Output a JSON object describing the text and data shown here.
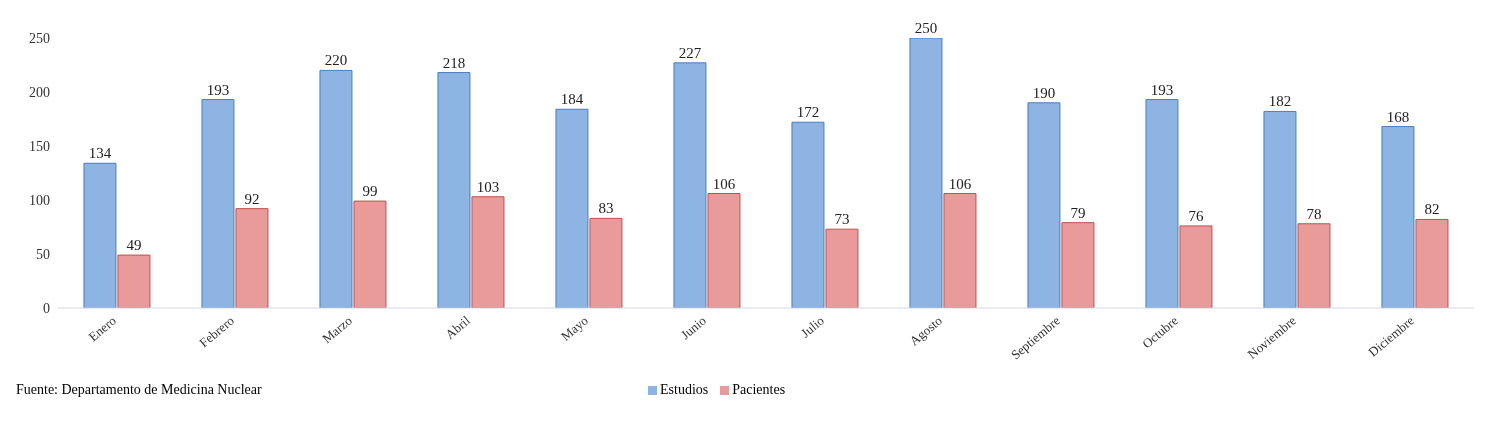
{
  "chart_data": {
    "type": "bar",
    "categories": [
      "Enero",
      "Febrero",
      "Marzo",
      "Abril",
      "Mayo",
      "Junio",
      "Julio",
      "Agosto",
      "Septiembre",
      "Octubre",
      "Noviembre",
      "Diciembre"
    ],
    "series": [
      {
        "name": "Estudios",
        "color": "#8eb4e3",
        "values": [
          134,
          193,
          220,
          218,
          184,
          227,
          172,
          250,
          190,
          193,
          182,
          168
        ]
      },
      {
        "name": "Pacientes",
        "color": "#e99a9a",
        "values": [
          49,
          92,
          99,
          103,
          83,
          106,
          73,
          106,
          79,
          76,
          78,
          82
        ]
      }
    ],
    "ylim": [
      0,
      250
    ],
    "yticks": [
      0,
      50,
      100,
      150,
      200,
      250
    ],
    "grid": false,
    "legend": "bottom",
    "data_labels": true,
    "annotations": [
      "Fuente: Departamento de Medicina Nuclear"
    ]
  }
}
